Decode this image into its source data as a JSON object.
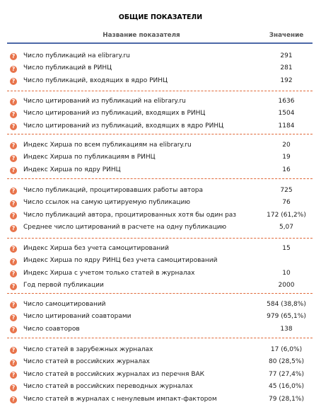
{
  "title": "ОБЩИЕ ПОКАЗАТЕЛИ",
  "columns": {
    "name": "Название показателя",
    "value": "Значение"
  },
  "help_icon_glyph": "?",
  "accent_color": "#4d68a8",
  "icon_color": "#e8734a",
  "divider_color": "#e06a3a",
  "groups": [
    {
      "rows": [
        {
          "label": "Число публикаций на elibrary.ru",
          "value": "291"
        },
        {
          "label": "Число публикаций в РИНЦ",
          "value": "281"
        },
        {
          "label": "Число публикаций, входящих в ядро РИНЦ",
          "value": "192"
        }
      ]
    },
    {
      "rows": [
        {
          "label": "Число цитирований из публикаций на elibrary.ru",
          "value": "1636"
        },
        {
          "label": "Число цитирований из публикаций, входящих в РИНЦ",
          "value": "1504"
        },
        {
          "label": "Число цитирований из публикаций, входящих в ядро РИНЦ",
          "value": "1184"
        }
      ]
    },
    {
      "rows": [
        {
          "label": "Индекс Хирша по всем публикациям на elibrary.ru",
          "value": "20"
        },
        {
          "label": "Индекс Хирша по публикациям в РИНЦ",
          "value": "19"
        },
        {
          "label": "Индекс Хирша по ядру РИНЦ",
          "value": "16"
        }
      ]
    },
    {
      "rows": [
        {
          "label": "Число публикаций, процитировавших работы автора",
          "value": "725"
        },
        {
          "label": "Число ссылок на самую цитируемую публикацию",
          "value": "76"
        },
        {
          "label": "Число публикаций автора, процитированных хотя бы один раз",
          "value": "172 (61,2%)"
        },
        {
          "label": "Среднее число цитирований в расчете на одну публикацию",
          "value": "5,07"
        }
      ]
    },
    {
      "rows": [
        {
          "label": "Индекс Хирша без учета самоцитирований",
          "value": "15"
        },
        {
          "label": "Индекс Хирша по ядру РИНЦ без учета самоцитирований",
          "value": ""
        },
        {
          "label": "Индекс Хирша с учетом только статей в журналах",
          "value": "10"
        },
        {
          "label": "Год первой публикации",
          "value": "2000"
        }
      ]
    },
    {
      "rows": [
        {
          "label": "Число самоцитирований",
          "value": "584 (38,8%)"
        },
        {
          "label": "Число цитирований соавторами",
          "value": "979 (65,1%)"
        },
        {
          "label": "Число соавторов",
          "value": "138"
        }
      ]
    },
    {
      "rows": [
        {
          "label": "Число статей в зарубежных журналах",
          "value": "17 (6,0%)"
        },
        {
          "label": "Число статей в российских журналах",
          "value": "80 (28,5%)"
        },
        {
          "label": "Число статей в российских журналах из перечня ВАК",
          "value": "77 (27,4%)"
        },
        {
          "label": "Число статей в российских переводных журналах",
          "value": "45 (16,0%)"
        },
        {
          "label": "Число статей в журналах с ненулевым импакт-фактором",
          "value": "79 (28,1%)"
        }
      ]
    }
  ]
}
